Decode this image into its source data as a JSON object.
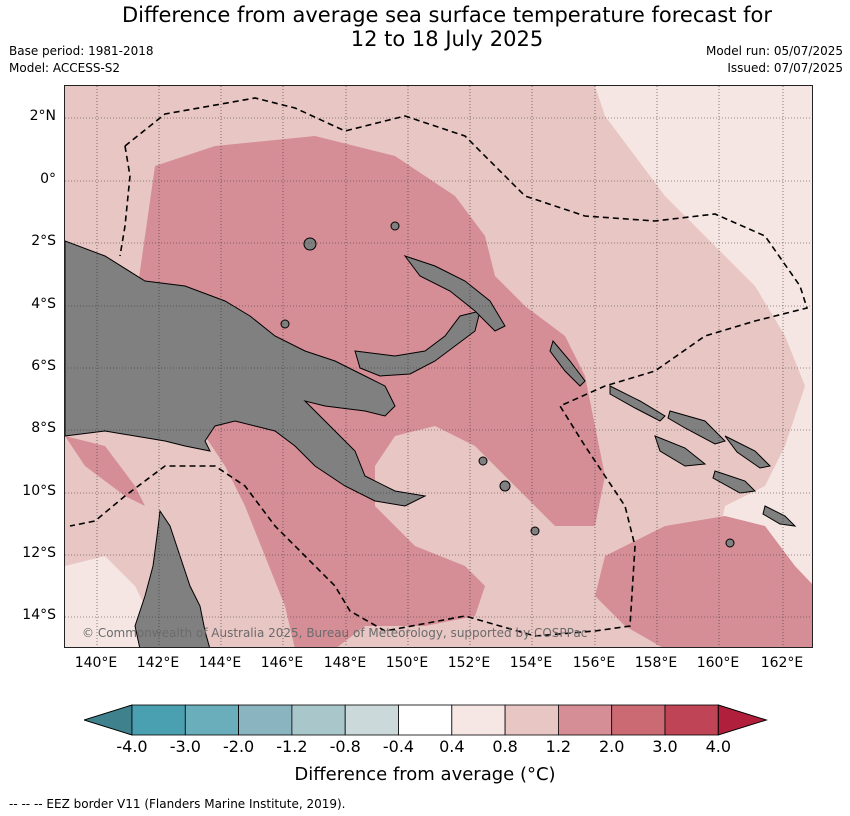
{
  "title": {
    "line1": "Difference from average sea surface temperature forecast for",
    "line2": "12 to 18 July 2025"
  },
  "meta": {
    "base_period": "Base period: 1981-2018",
    "model": "Model: ACCESS-S2",
    "model_run": "Model run: 05/07/2025",
    "issued": "Issued: 07/07/2025"
  },
  "axes": {
    "lat_labels": [
      "2°N",
      "0°",
      "2°S",
      "4°S",
      "6°S",
      "8°S",
      "10°S",
      "12°S",
      "14°S"
    ],
    "lon_labels": [
      "140°E",
      "142°E",
      "144°E",
      "146°E",
      "148°E",
      "150°E",
      "152°E",
      "154°E",
      "156°E",
      "158°E",
      "160°E",
      "162°E"
    ]
  },
  "copyright": "© Commonwealth of Australia 2025, Bureau of Meteorology, supported by COSPPac",
  "colorbar": {
    "title": "Difference from average (°C)",
    "ticks": [
      "-4.0",
      "-3.0",
      "-2.0",
      "-1.2",
      "-0.8",
      "-0.4",
      "0.4",
      "0.8",
      "1.2",
      "2.0",
      "3.0",
      "4.0"
    ],
    "colors": [
      "#3f818c",
      "#4aa0b0",
      "#6aaebc",
      "#8ab5c0",
      "#a9c7cb",
      "#cbd9db",
      "#ffffff",
      "#f6e6e4",
      "#e8c6c3",
      "#d68e96",
      "#cc6a74",
      "#bf4455",
      "#b01f3b"
    ]
  },
  "legend": {
    "eez": "--  --  -- EEZ border V11 (Flanders Marine Institute, 2019)."
  },
  "map_colors": {
    "land": "#808080",
    "band_0_4_0_8": "#f5e6e4",
    "band_0_8_1_2": "#e8c6c3",
    "band_1_2_2_0": "#d68e96"
  }
}
